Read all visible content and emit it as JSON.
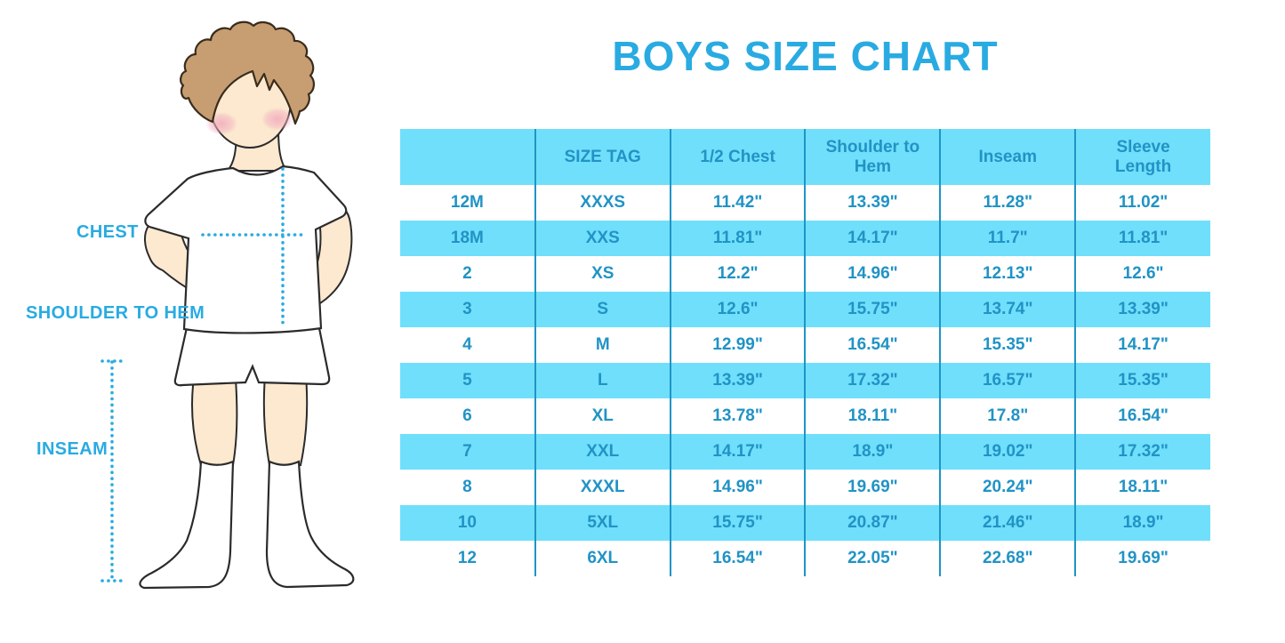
{
  "title": "BOYS SIZE CHART",
  "figure": {
    "chest_label": "CHEST",
    "shoulder_to_hem_label": "SHOULDER TO HEM",
    "inseam_label": "INSEAM"
  },
  "table": {
    "columns": [
      "",
      "SIZE TAG",
      "1/2 Chest",
      "Shoulder to Hem",
      "Inseam",
      "Sleeve Length"
    ],
    "rows": [
      [
        "12M",
        "XXXS",
        "11.42\"",
        "13.39\"",
        "11.28\"",
        "11.02\""
      ],
      [
        "18M",
        "XXS",
        "11.81\"",
        "14.17\"",
        "11.7\"",
        "11.81\""
      ],
      [
        "2",
        "XS",
        "12.2\"",
        "14.96\"",
        "12.13\"",
        "12.6\""
      ],
      [
        "3",
        "S",
        "12.6\"",
        "15.75\"",
        "13.74\"",
        "13.39\""
      ],
      [
        "4",
        "M",
        "12.99\"",
        "16.54\"",
        "15.35\"",
        "14.17\""
      ],
      [
        "5",
        "L",
        "13.39\"",
        "17.32\"",
        "16.57\"",
        "15.35\""
      ],
      [
        "6",
        "XL",
        "13.78\"",
        "18.11\"",
        "17.8\"",
        "16.54\""
      ],
      [
        "7",
        "XXL",
        "14.17\"",
        "18.9\"",
        "19.02\"",
        "17.32\""
      ],
      [
        "8",
        "XXXL",
        "14.96\"",
        "19.69\"",
        "20.24\"",
        "18.11\""
      ],
      [
        "10",
        "5XL",
        "15.75\"",
        "20.87\"",
        "21.46\"",
        "18.9\""
      ],
      [
        "12",
        "6XL",
        "16.54\"",
        "22.05\"",
        "22.68\"",
        "19.69\""
      ]
    ]
  },
  "colors": {
    "accent": "#29abe2",
    "table_text": "#2193c5",
    "stripe_fill": "#70dffb",
    "column_line": "#1e95c5",
    "skin": "#fce9d0",
    "hair": "#c69e71",
    "blush": "#f2aebe"
  }
}
